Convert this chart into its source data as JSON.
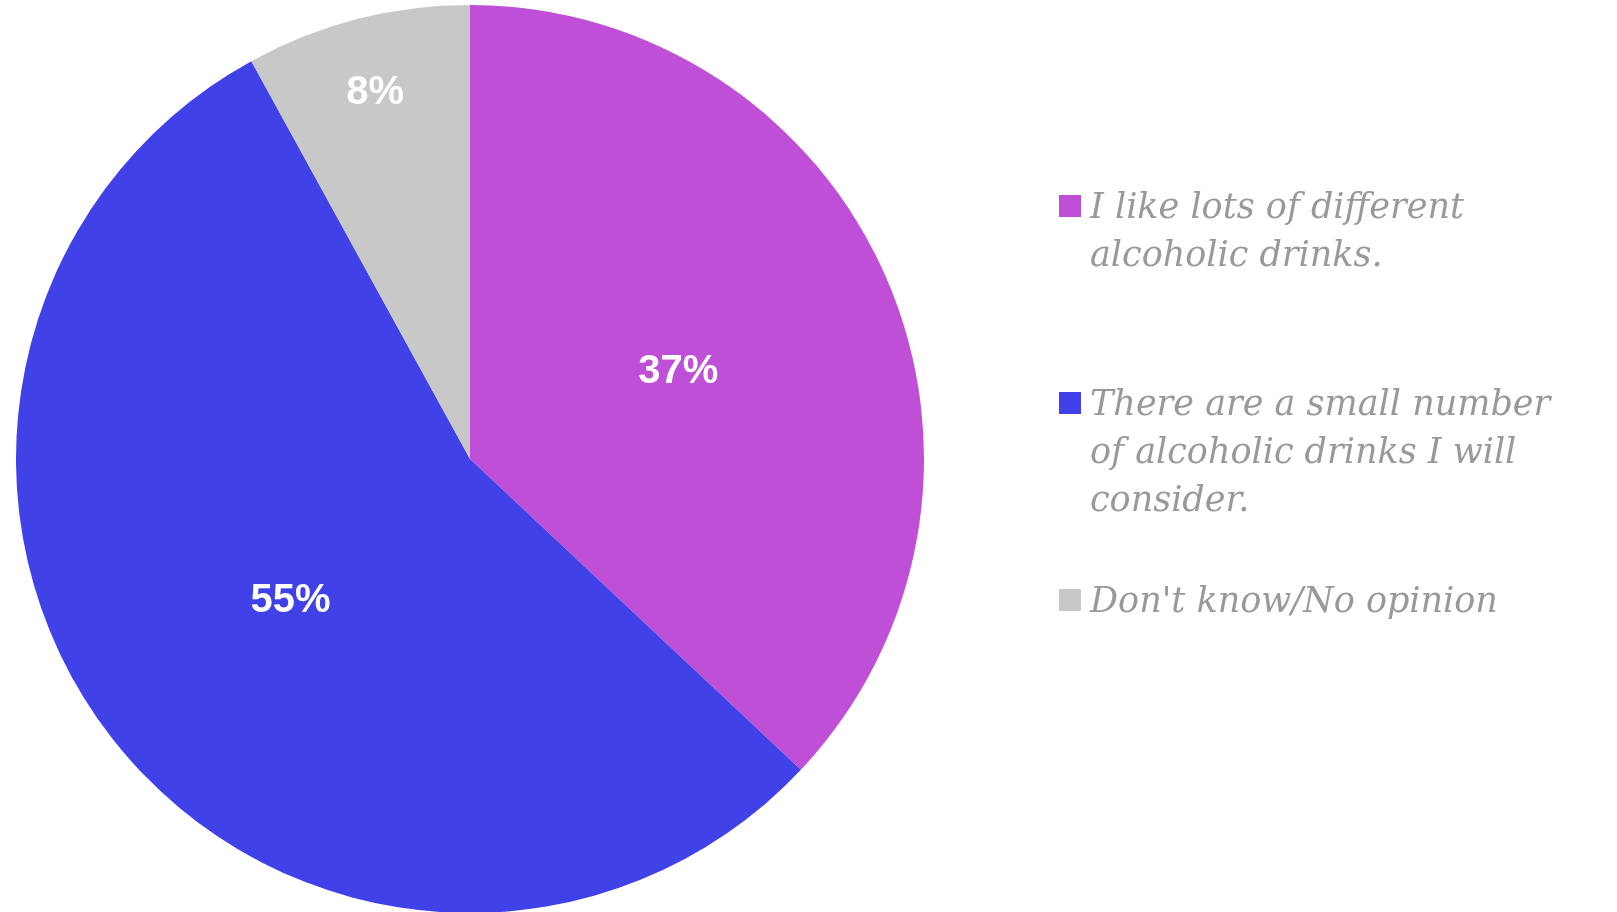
{
  "chart_data": {
    "type": "pie",
    "categories": [
      "I like lots of different alcoholic drinks.",
      "There are a small number of alcoholic drinks I will consider.",
      "Don't know/No opinion"
    ],
    "values": [
      37,
      55,
      8
    ],
    "colors": [
      "#c04fd8",
      "#4141e8",
      "#c8c8c8"
    ],
    "value_labels": [
      "37%",
      "55%",
      "8%"
    ],
    "legend": "right"
  }
}
